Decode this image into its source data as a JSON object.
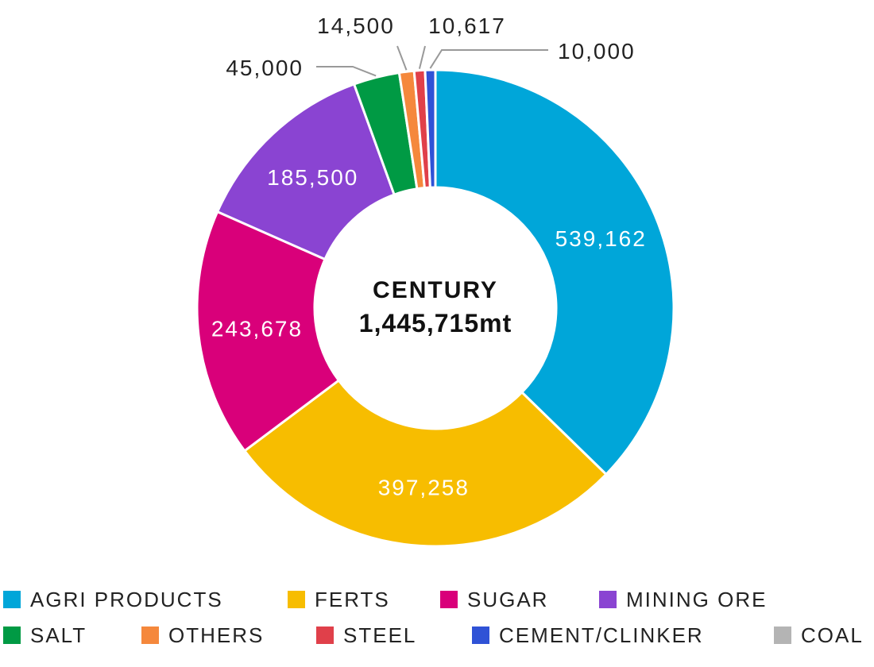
{
  "chart_data": {
    "type": "pie",
    "title": "CENTURY",
    "total_label": "1,445,715mt",
    "legend_position": "bottom",
    "slices": [
      {
        "name": "AGRI PRODUCTS",
        "value": 539162,
        "label": "539,162",
        "color": "#00a6d9"
      },
      {
        "name": "FERTS",
        "value": 397258,
        "label": "397,258",
        "color": "#f7bd00"
      },
      {
        "name": "SUGAR",
        "value": 243678,
        "label": "243,678",
        "color": "#d9007a"
      },
      {
        "name": "MINING ORE",
        "value": 185500,
        "label": "185,500",
        "color": "#8a44d2"
      },
      {
        "name": "SALT",
        "value": 45000,
        "label": "45,000",
        "color": "#009a44"
      },
      {
        "name": "OTHERS",
        "value": 14500,
        "label": "14,500",
        "color": "#f5883c"
      },
      {
        "name": "STEEL",
        "value": 10617,
        "label": "10,617",
        "color": "#e0404a"
      },
      {
        "name": "CEMENT/CLINKER",
        "value": 10000,
        "label": "10,000",
        "color": "#2f52d6"
      },
      {
        "name": "COAL",
        "value": 0,
        "label": "",
        "color": "#b4b4b4"
      }
    ]
  }
}
